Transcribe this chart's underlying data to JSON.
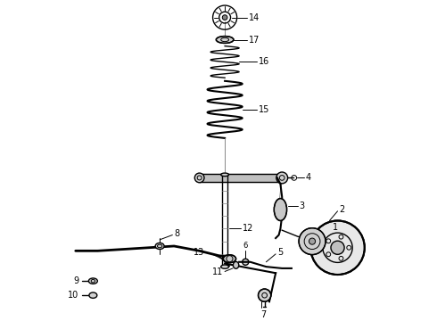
{
  "title": "",
  "bg_color": "#ffffff",
  "line_color": "#000000",
  "fig_width": 4.9,
  "fig_height": 3.6,
  "dpi": 100
}
